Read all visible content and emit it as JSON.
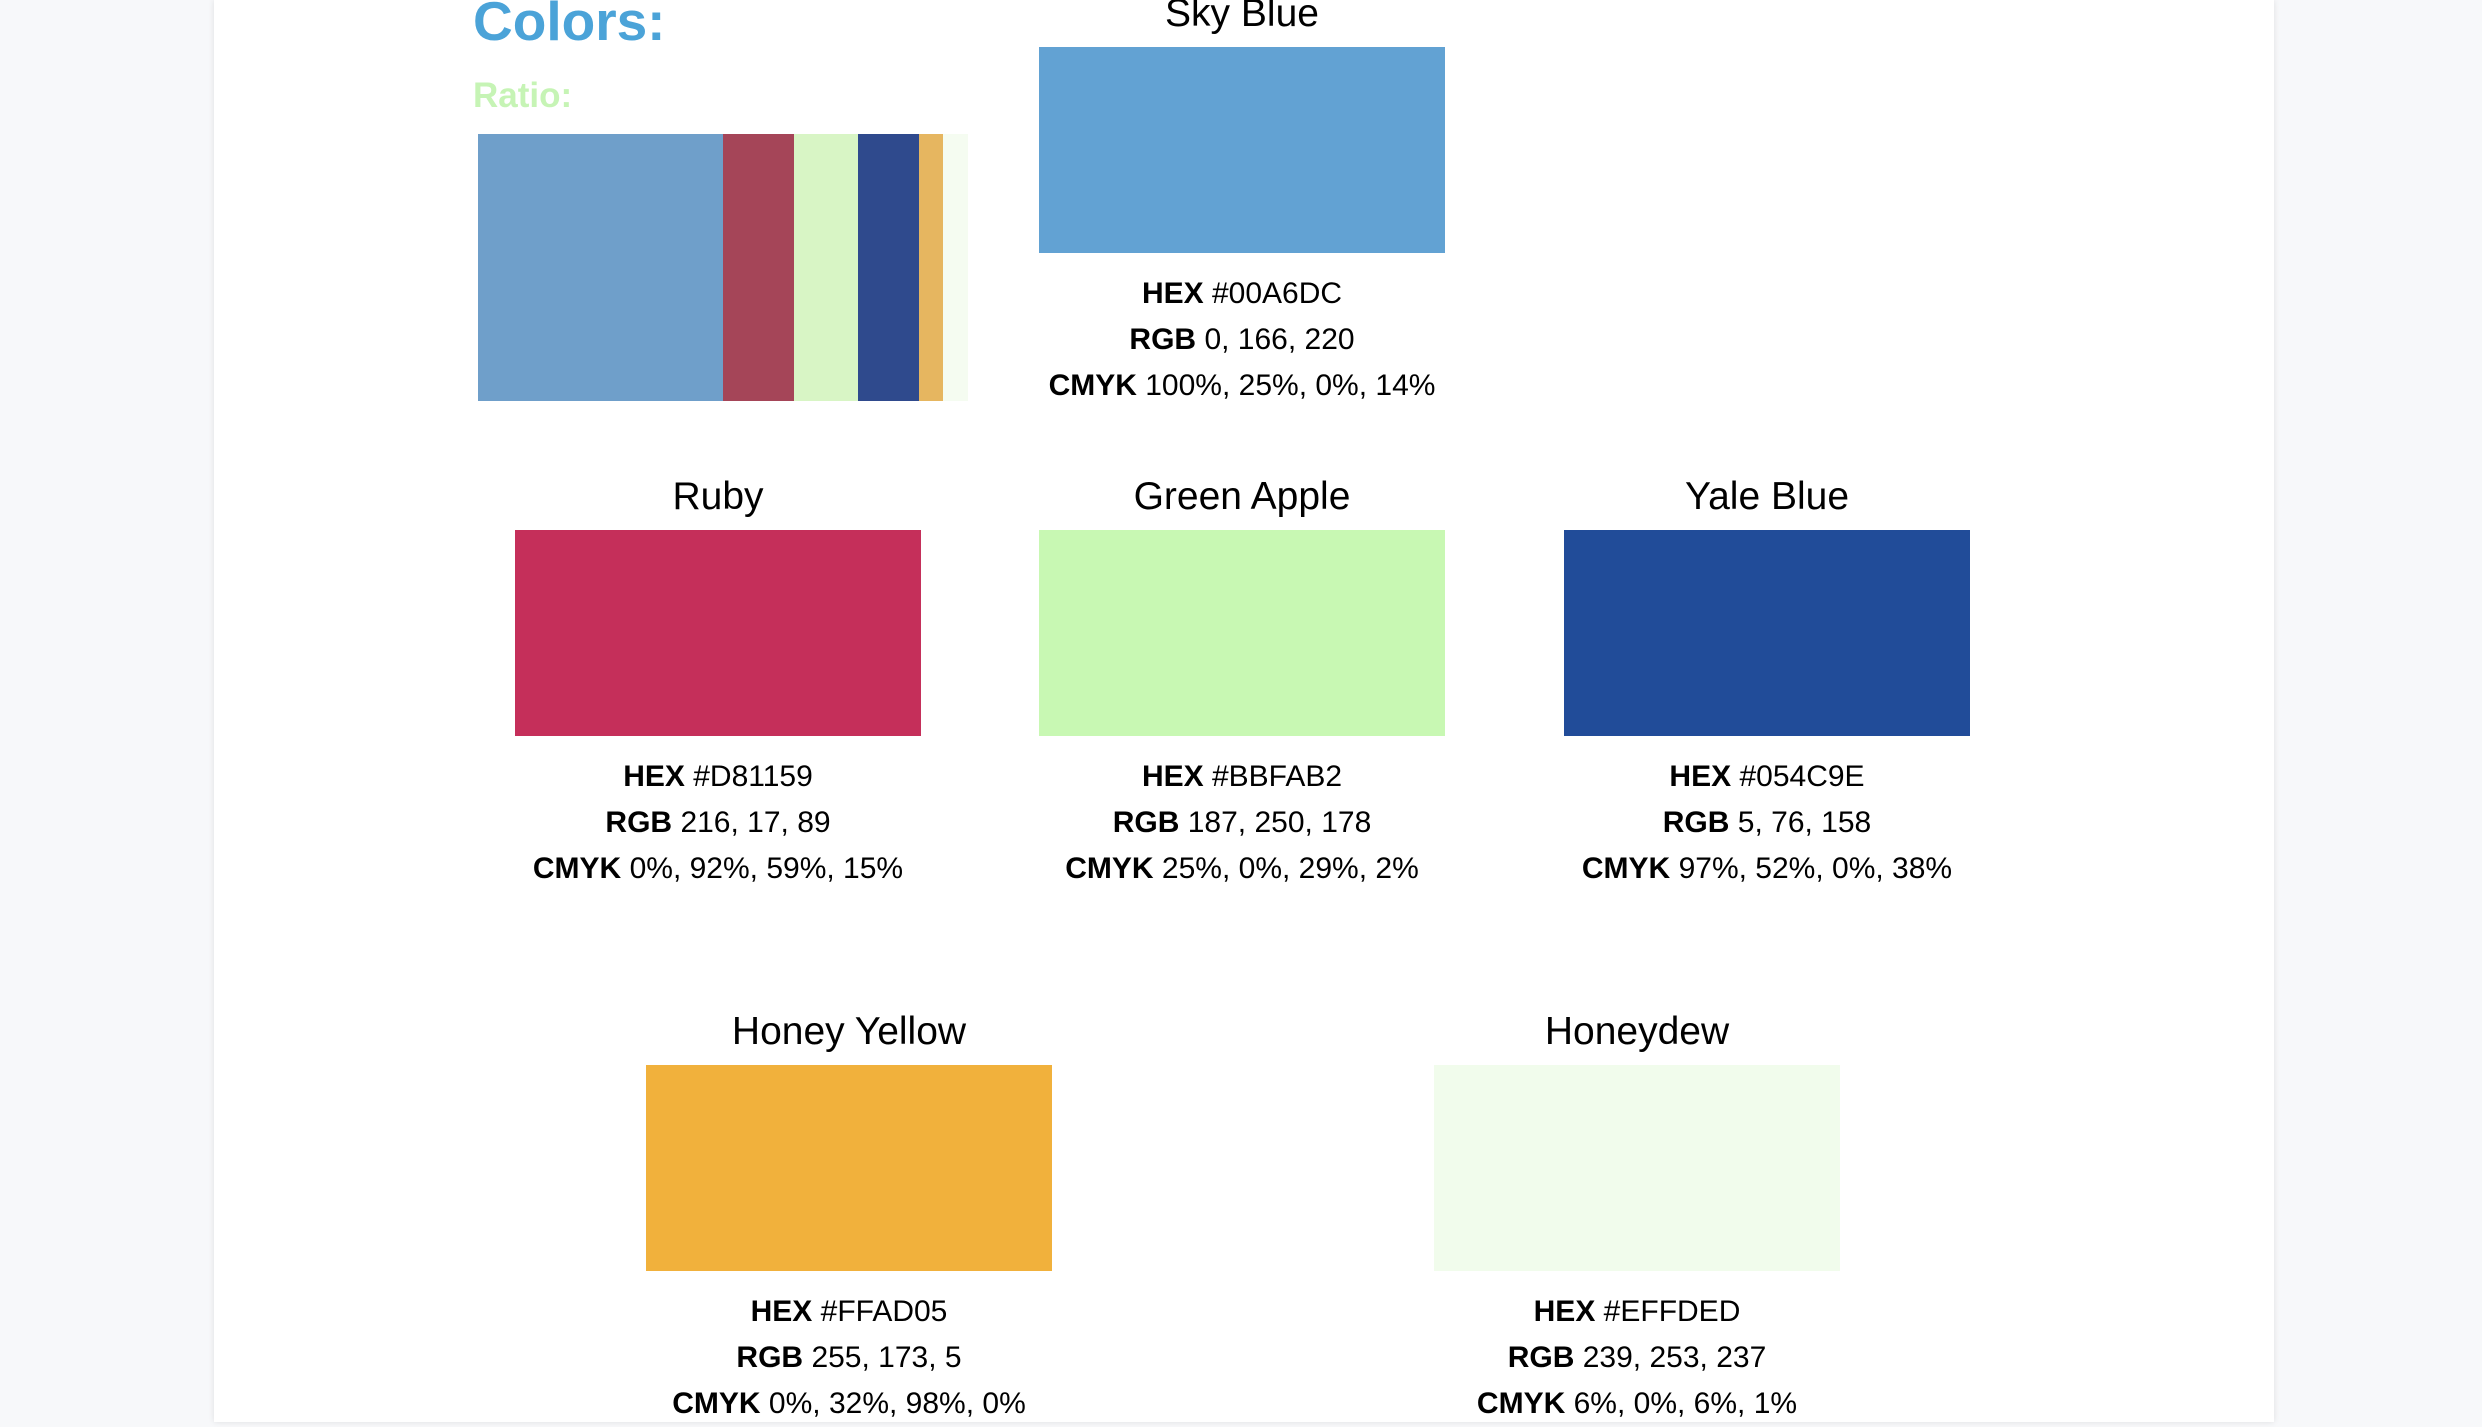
{
  "heading": "Colors:",
  "ratio": {
    "label": "Ratio:",
    "segments": [
      {
        "name": "Sky Blue",
        "color": "#6f9fca",
        "share": 0.5
      },
      {
        "name": "Ruby",
        "color": "#a54558",
        "share": 0.145
      },
      {
        "name": "Green Apple",
        "color": "#d8f5c5",
        "share": 0.13
      },
      {
        "name": "Yale Blue",
        "color": "#2f4a8d",
        "share": 0.125
      },
      {
        "name": "Honey Yellow",
        "color": "#e6b660",
        "share": 0.05
      },
      {
        "name": "Honeydew",
        "color": "#f5fcf1",
        "share": 0.05
      }
    ]
  },
  "colors": [
    {
      "name": "Sky Blue",
      "swatch": "#62a2d3",
      "hex_label": "HEX",
      "hex": "#00A6DC",
      "rgb_label": "RGB",
      "rgb": "0, 166, 220",
      "cmyk_label": "CMYK",
      "cmyk": "100%, 25%, 0%, 14%"
    },
    {
      "name": "Ruby",
      "swatch": "#c52f5a",
      "hex_label": "HEX",
      "hex": "#D81159",
      "rgb_label": "RGB",
      "rgb": "216, 17, 89",
      "cmyk_label": "CMYK",
      "cmyk": "0%, 92%, 59%, 15%"
    },
    {
      "name": "Green Apple",
      "swatch": "#c8f8b3",
      "hex_label": "HEX",
      "hex": "#BBFAB2",
      "rgb_label": "RGB",
      "rgb": "187, 250, 178",
      "cmyk_label": "CMYK",
      "cmyk": "25%, 0%, 29%, 2%"
    },
    {
      "name": "Yale Blue",
      "swatch": "#214c99",
      "hex_label": "HEX",
      "hex": "#054C9E",
      "rgb_label": "RGB",
      "rgb": "5, 76, 158",
      "cmyk_label": "CMYK",
      "cmyk": "97%, 52%, 0%, 38%"
    },
    {
      "name": "Honey Yellow",
      "swatch": "#f1b13c",
      "hex_label": "HEX",
      "hex": "#FFAD05",
      "rgb_label": "RGB",
      "rgb": "255, 173, 5",
      "cmyk_label": "CMYK",
      "cmyk": "0%, 32%, 98%, 0%"
    },
    {
      "name": "Honeydew",
      "swatch": "#f1fcec",
      "hex_label": "HEX",
      "hex": "#EFFDED",
      "rgb_label": "RGB",
      "rgb": "239, 253, 237",
      "cmyk_label": "CMYK",
      "cmyk": "6%, 0%, 6%, 1%"
    }
  ]
}
